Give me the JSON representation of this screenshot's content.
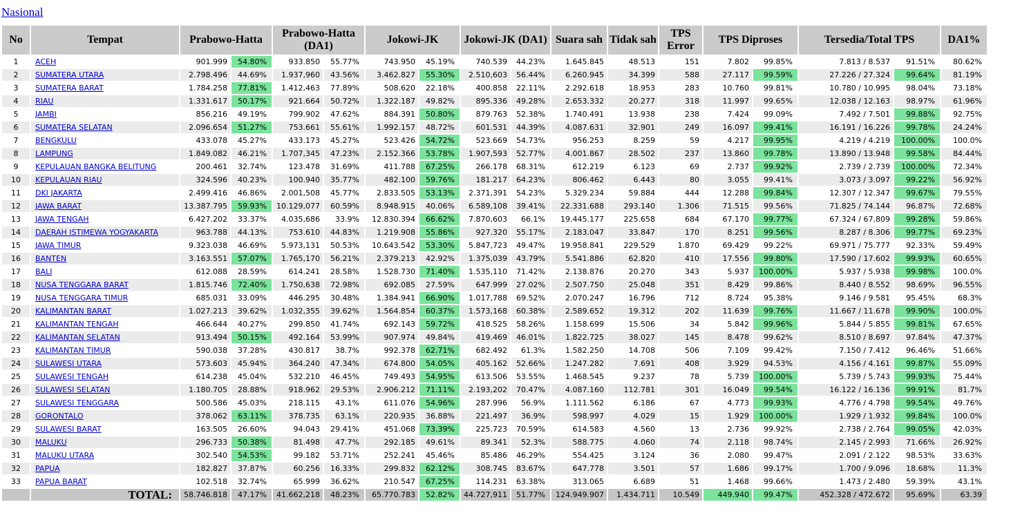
{
  "page": {
    "nasional_label": "Nasional"
  },
  "colors": {
    "link": "#0000cc",
    "headerBg": "#cbcbcb",
    "stripe": "#ebebeb",
    "totalBg": "#c6c6c6",
    "green": "#7be39c"
  },
  "table": {
    "headers": [
      "No",
      "Tempat",
      "Prabowo-Hatta",
      "Prabowo-Hatta (DA1)",
      "Jokowi-JK",
      "Jokowi-JK (DA1)",
      "Suara sah",
      "Tidak sah",
      "TPS Error",
      "TPS Diproses",
      "Tersedia/Total TPS",
      "DA1%"
    ],
    "row_columns": [
      "no",
      "tempat",
      "prabowo_votes",
      "prabowo_pct",
      "prabowo_pct_highlight",
      "prabowo_da1_votes",
      "prabowo_da1_pct",
      "jokowi_votes",
      "jokowi_pct",
      "jokowi_pct_highlight",
      "jokowi_da1_votes",
      "jokowi_da1_pct",
      "suara_sah",
      "tidak_sah",
      "tps_error",
      "tps_diproses",
      "tps_diproses_pct",
      "tps_diproses_pct_highlight",
      "tersedia_total_tps",
      "tersedia_pct",
      "tersedia_pct_highlight",
      "da1_pct"
    ],
    "rows": [
      [
        "1",
        "ACEH",
        "901.999",
        "54.80%",
        1,
        "933.850",
        "55.77%",
        "743.950",
        "45.19%",
        0,
        "740.539",
        "44.23%",
        "1.645.845",
        "48.513",
        "151",
        "7.802",
        "99.85%",
        0,
        "7.813 / 8.537",
        "91.51%",
        0,
        "80.62%"
      ],
      [
        "2",
        "SUMATERA UTARA",
        "2.798.496",
        "44.69%",
        0,
        "1.937,960",
        "43.56%",
        "3.462.827",
        "55.30%",
        1,
        "2.510,603",
        "56.44%",
        "6.260.945",
        "34.399",
        "588",
        "27.117",
        "99.59%",
        1,
        "27.226 / 27.324",
        "99.64%",
        1,
        "81.19%"
      ],
      [
        "3",
        "SUMATERA BARAT",
        "1.784.258",
        "77.81%",
        1,
        "1.412,463",
        "77.89%",
        "508.620",
        "22.18%",
        0,
        "400.858",
        "22.11%",
        "2.292.618",
        "18.953",
        "283",
        "10.760",
        "99.81%",
        0,
        "10.780 / 10.995",
        "98.04%",
        0,
        "73.18%"
      ],
      [
        "4",
        "RIAU",
        "1.331.617",
        "50.17%",
        1,
        "921.664",
        "50.72%",
        "1.322.187",
        "49.82%",
        0,
        "895.336",
        "49.28%",
        "2.653.332",
        "20.277",
        "318",
        "11.997",
        "99.65%",
        0,
        "12.038 / 12.163",
        "98.97%",
        0,
        "61.96%"
      ],
      [
        "5",
        "JAMBI",
        "856.216",
        "49.19%",
        0,
        "799.902",
        "47.62%",
        "884.391",
        "50.80%",
        1,
        "879.763",
        "52.38%",
        "1.740.491",
        "13.938",
        "238",
        "7.424",
        "99.09%",
        0,
        "7.492 / 7.501",
        "99.88%",
        1,
        "92.75%"
      ],
      [
        "6",
        "SUMATERA SELATAN",
        "2.096.654",
        "51.27%",
        1,
        "753.661",
        "55.61%",
        "1.992.157",
        "48.72%",
        0,
        "601.531",
        "44.39%",
        "4.087.631",
        "32.901",
        "249",
        "16.097",
        "99.41%",
        1,
        "16.191 / 16.226",
        "99.78%",
        1,
        "24.24%"
      ],
      [
        "7",
        "BENGKULU",
        "433.078",
        "45.27%",
        0,
        "433.173",
        "45.27%",
        "523.426",
        "54.72%",
        1,
        "523.669",
        "54.73%",
        "956.253",
        "8.259",
        "59",
        "4.217",
        "99.95%",
        1,
        "4.219 / 4.219",
        "100.00%",
        1,
        "100.0%"
      ],
      [
        "8",
        "LAMPUNG",
        "1.849.082",
        "46.21%",
        0,
        "1.707,345",
        "47.23%",
        "2.152.366",
        "53.78%",
        1,
        "1.907,593",
        "52.77%",
        "4.001.867",
        "28.502",
        "237",
        "13.860",
        "99.78%",
        1,
        "13.890 / 13.948",
        "99.58%",
        1,
        "84.44%"
      ],
      [
        "9",
        "KEPULAUAN BANGKA BELITUNG",
        "200.461",
        "32.74%",
        0,
        "123.478",
        "31.69%",
        "411.788",
        "67.25%",
        1,
        "266.178",
        "68.31%",
        "612.219",
        "6.123",
        "69",
        "2.737",
        "99.92%",
        1,
        "2.739 / 2.739",
        "100.00%",
        1,
        "72.34%"
      ],
      [
        "10",
        "KEPULAUAN RIAU",
        "324.596",
        "40.23%",
        0,
        "100.940",
        "35.77%",
        "482.100",
        "59.76%",
        1,
        "181.217",
        "64.23%",
        "806.462",
        "6.443",
        "80",
        "3.055",
        "99.41%",
        0,
        "3.073 / 3.097",
        "99.22%",
        1,
        "56.92%"
      ],
      [
        "11",
        "DKI JAKARTA",
        "2.499.416",
        "46.86%",
        0,
        "2.001,508",
        "45.77%",
        "2.833.505",
        "53.13%",
        1,
        "2.371,391",
        "54.23%",
        "5.329.234",
        "59.884",
        "444",
        "12.288",
        "99.84%",
        1,
        "12.307 / 12.347",
        "99.67%",
        1,
        "79.55%"
      ],
      [
        "12",
        "JAWA BARAT",
        "13.387.795",
        "59.93%",
        1,
        "10.129,077",
        "60.59%",
        "8.948.915",
        "40.06%",
        0,
        "6.589,108",
        "39.41%",
        "22.331.688",
        "293.140",
        "1.306",
        "71.515",
        "99.56%",
        0,
        "71.825 / 74.144",
        "96.87%",
        0,
        "72.68%"
      ],
      [
        "13",
        "JAWA TENGAH",
        "6.427.202",
        "33.37%",
        0,
        "4.035,686",
        "33.9%",
        "12.830.394",
        "66.62%",
        1,
        "7.870,603",
        "66.1%",
        "19.445.177",
        "225.658",
        "684",
        "67.170",
        "99.77%",
        1,
        "67.324 / 67.809",
        "99.28%",
        1,
        "59.86%"
      ],
      [
        "14",
        "DAERAH ISTIMEWA YOGYAKARTA",
        "963.788",
        "44.13%",
        0,
        "753.610",
        "44.83%",
        "1.219.908",
        "55.86%",
        1,
        "927.320",
        "55.17%",
        "2.183.047",
        "33.847",
        "170",
        "8.251",
        "99.56%",
        1,
        "8.287 / 8.306",
        "99.77%",
        1,
        "69.23%"
      ],
      [
        "15",
        "JAWA TIMUR",
        "9.323.038",
        "46.69%",
        0,
        "5.973,131",
        "50.53%",
        "10.643.542",
        "53.30%",
        1,
        "5.847,723",
        "49.47%",
        "19.958.841",
        "229.529",
        "1.870",
        "69.429",
        "99.22%",
        0,
        "69.971 / 75.777",
        "92.33%",
        0,
        "59.49%"
      ],
      [
        "16",
        "BANTEN",
        "3.163.551",
        "57.07%",
        1,
        "1.765,170",
        "56.21%",
        "2.379.213",
        "42.92%",
        0,
        "1.375,039",
        "43.79%",
        "5.541.886",
        "62.820",
        "410",
        "17.556",
        "99.80%",
        1,
        "17.590 / 17.602",
        "99.93%",
        1,
        "60.65%"
      ],
      [
        "17",
        "BALI",
        "612.088",
        "28.59%",
        0,
        "614.241",
        "28.58%",
        "1.528.730",
        "71.40%",
        1,
        "1.535,110",
        "71.42%",
        "2.138.876",
        "20.270",
        "343",
        "5.937",
        "100.00%",
        1,
        "5.937 / 5.938",
        "99.98%",
        1,
        "100.0%"
      ],
      [
        "18",
        "NUSA TENGGARA BARAT",
        "1.815.746",
        "72.40%",
        1,
        "1.750,638",
        "72.98%",
        "692.085",
        "27.59%",
        0,
        "647.999",
        "27.02%",
        "2.507.750",
        "25.048",
        "351",
        "8.429",
        "99.86%",
        0,
        "8.440 / 8.552",
        "98.69%",
        0,
        "96.55%"
      ],
      [
        "19",
        "NUSA TENGGARA TIMUR",
        "685.031",
        "33.09%",
        0,
        "446.295",
        "30.48%",
        "1.384.941",
        "66.90%",
        1,
        "1.017,788",
        "69.52%",
        "2.070.247",
        "16.796",
        "712",
        "8.724",
        "95.38%",
        0,
        "9.146 / 9.581",
        "95.45%",
        0,
        "68.3%"
      ],
      [
        "20",
        "KALIMANTAN BARAT",
        "1.027.213",
        "39.62%",
        0,
        "1.032,355",
        "39.62%",
        "1.564.854",
        "60.37%",
        1,
        "1.573,168",
        "60.38%",
        "2.589.652",
        "19.312",
        "202",
        "11.639",
        "99.76%",
        1,
        "11.667 / 11.678",
        "99.90%",
        1,
        "100.0%"
      ],
      [
        "21",
        "KALIMANTAN TENGAH",
        "466.644",
        "40.27%",
        0,
        "299.850",
        "41.74%",
        "692.143",
        "59.72%",
        1,
        "418.525",
        "58.26%",
        "1.158.699",
        "15.506",
        "34",
        "5.842",
        "99.96%",
        1,
        "5.844 / 5.855",
        "99.81%",
        1,
        "67.65%"
      ],
      [
        "22",
        "KALIMANTAN SELATAN",
        "913.494",
        "50.15%",
        1,
        "492.164",
        "53.99%",
        "907.974",
        "49.84%",
        0,
        "419.469",
        "46.01%",
        "1.822.725",
        "38.027",
        "145",
        "8.478",
        "99.62%",
        0,
        "8.510 / 8.697",
        "97.84%",
        0,
        "47.37%"
      ],
      [
        "23",
        "KALIMANTAN TIMUR",
        "590.038",
        "37.28%",
        0,
        "430.817",
        "38.7%",
        "992.378",
        "62.71%",
        1,
        "682.492",
        "61.3%",
        "1.582.250",
        "14.708",
        "506",
        "7.109",
        "99.42%",
        0,
        "7.150 / 7.412",
        "96.46%",
        0,
        "51.66%"
      ],
      [
        "24",
        "SULAWESI UTARA",
        "573.603",
        "45.94%",
        0,
        "364.240",
        "47.34%",
        "674.800",
        "54.05%",
        1,
        "405.162",
        "52.66%",
        "1.247.282",
        "7.691",
        "408",
        "3.929",
        "94.53%",
        0,
        "4.156 / 4.161",
        "99.87%",
        1,
        "55.09%"
      ],
      [
        "25",
        "SULAWESI TENGAH",
        "614.238",
        "45.04%",
        0,
        "532.210",
        "46.45%",
        "749.493",
        "54.95%",
        1,
        "613.506",
        "53.55%",
        "1.468.545",
        "9.237",
        "78",
        "5.739",
        "100.00%",
        1,
        "5.739 / 5.743",
        "99.93%",
        1,
        "75.44%"
      ],
      [
        "26",
        "SULAWESI SELATAN",
        "1.180.705",
        "28.88%",
        0,
        "918.962",
        "29.53%",
        "2.906.212",
        "71.11%",
        1,
        "2.193,202",
        "70.47%",
        "4.087.160",
        "112.781",
        "301",
        "16.049",
        "99.54%",
        1,
        "16.122 / 16.136",
        "99.91%",
        1,
        "81.7%"
      ],
      [
        "27",
        "SULAWESI TENGGARA",
        "500.586",
        "45.03%",
        0,
        "218.115",
        "43.1%",
        "611.076",
        "54.96%",
        1,
        "287.996",
        "56.9%",
        "1.111.562",
        "6.186",
        "67",
        "4.773",
        "99.93%",
        1,
        "4.776 / 4.798",
        "99.54%",
        1,
        "49.76%"
      ],
      [
        "28",
        "GORONTALO",
        "378.062",
        "63.11%",
        1,
        "378.735",
        "63.1%",
        "220.935",
        "36.88%",
        0,
        "221.497",
        "36.9%",
        "598.997",
        "4.029",
        "15",
        "1.929",
        "100.00%",
        1,
        "1.929 / 1.932",
        "99.84%",
        1,
        "100.0%"
      ],
      [
        "29",
        "SULAWESI BARAT",
        "163.505",
        "26.60%",
        0,
        "94.043",
        "29.41%",
        "451.068",
        "73.39%",
        1,
        "225.723",
        "70.59%",
        "614.583",
        "4.560",
        "13",
        "2.736",
        "99.92%",
        0,
        "2.738 / 2.764",
        "99.05%",
        1,
        "42.03%"
      ],
      [
        "30",
        "MALUKU",
        "296.733",
        "50.38%",
        1,
        "81.498",
        "47.7%",
        "292.185",
        "49.61%",
        0,
        "89.341",
        "52.3%",
        "588.775",
        "4.060",
        "74",
        "2.118",
        "98.74%",
        0,
        "2.145 / 2.993",
        "71.66%",
        0,
        "26.92%"
      ],
      [
        "31",
        "MALUKU UTARA",
        "302.540",
        "54.53%",
        1,
        "99.182",
        "53.71%",
        "252.241",
        "45.46%",
        0,
        "85.486",
        "46.29%",
        "554.425",
        "3.124",
        "36",
        "2.080",
        "99.47%",
        0,
        "2.091 / 2.122",
        "98.53%",
        0,
        "33.63%"
      ],
      [
        "32",
        "PAPUA",
        "182.827",
        "37.87%",
        0,
        "60.256",
        "16.33%",
        "299.832",
        "62.12%",
        1,
        "308.745",
        "83.67%",
        "647.778",
        "3.501",
        "57",
        "1.686",
        "99.17%",
        0,
        "1.700 / 9.096",
        "18.68%",
        0,
        "11.3%"
      ],
      [
        "33",
        "PAPUA BARAT",
        "102.518",
        "32.74%",
        0,
        "65.999",
        "36.62%",
        "210.547",
        "67.25%",
        1,
        "114.231",
        "63.38%",
        "313.065",
        "6.689",
        "51",
        "1.468",
        "99.66%",
        0,
        "1.473 / 2.480",
        "59.39%",
        0,
        "43.1%"
      ]
    ],
    "total": {
      "label": "TOTAL:",
      "cells": [
        "58.746.818",
        "47.17%",
        0,
        "41.662,218",
        "48.23%",
        "65.770.783",
        "52.82%",
        1,
        "44.727,911",
        "51.77%",
        "124.949.907",
        "1.434.711",
        "10.549",
        "449.940",
        "99.47%",
        1,
        "452.328 / 472.672",
        "95.69%",
        0,
        "63.39"
      ],
      "diproses_value_highlight": true
    }
  }
}
